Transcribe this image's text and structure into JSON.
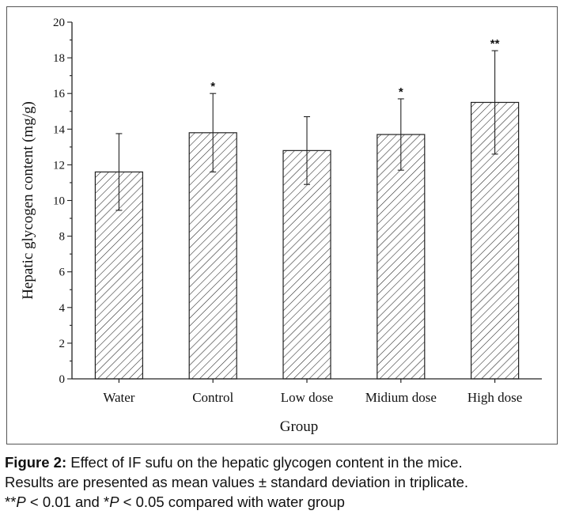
{
  "chart_data": {
    "type": "bar",
    "categories": [
      "Water",
      "Control",
      "Low dose",
      "Midium dose",
      "High dose"
    ],
    "values": [
      11.6,
      13.8,
      12.8,
      13.7,
      15.5
    ],
    "errors": [
      2.15,
      2.2,
      1.9,
      2.0,
      2.9
    ],
    "significance": [
      "",
      "*",
      "",
      "*",
      "**"
    ],
    "xlabel": "Group",
    "ylabel": "Hepatic glycogen content (mg/g)",
    "ylim": [
      0,
      20
    ],
    "yticks": [
      0,
      2,
      4,
      6,
      8,
      10,
      12,
      14,
      16,
      18,
      20
    ],
    "bar_pattern": "diagonal-hatch",
    "grid": false
  },
  "caption": {
    "label": "Figure 2:",
    "line1": " Effect of IF sufu on the hepatic glycogen content in the mice.",
    "line2": "Results are presented as mean values ± standard deviation in triplicate.",
    "line3_a": "**",
    "line3_p1": "P",
    "line3_b": " < 0.01 and *",
    "line3_p2": "P",
    "line3_c": " < 0.05 compared with water group"
  }
}
